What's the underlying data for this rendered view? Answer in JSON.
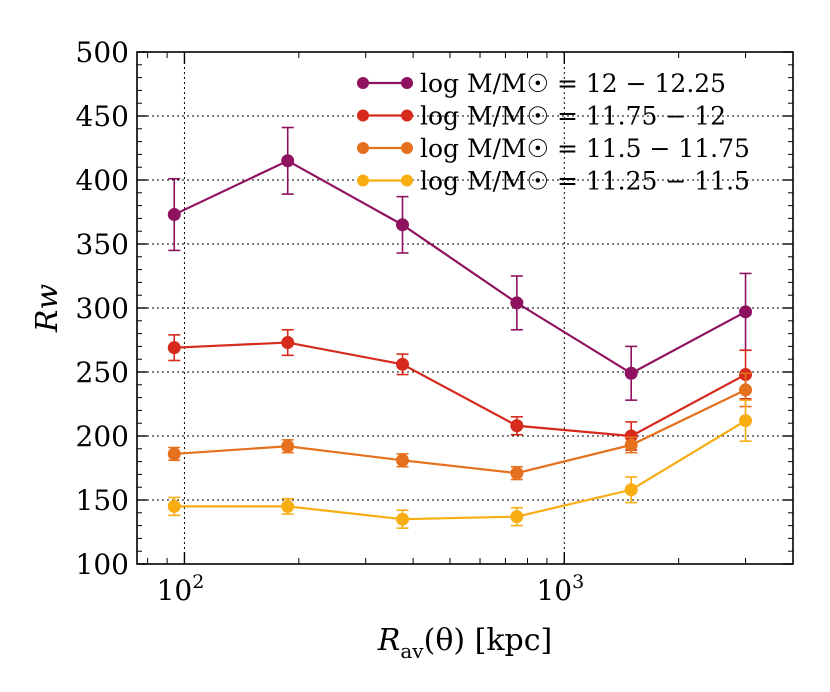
{
  "chart_data": {
    "type": "line",
    "xlabel": "R_av(θ) [kpc]",
    "ylabel": "Rw",
    "xscale": "log",
    "xlim": [
      75,
      4000
    ],
    "ylim": [
      100,
      500
    ],
    "yticks": [
      100,
      150,
      200,
      250,
      300,
      350,
      400,
      450,
      500
    ],
    "xticks": [
      {
        "value": 100,
        "label_base": "10",
        "label_exp": "2"
      },
      {
        "value": 1000,
        "label_base": "10",
        "label_exp": "3"
      }
    ],
    "grid": true,
    "legend_position": "top-right",
    "x": [
      94,
      187,
      375,
      750,
      1500,
      3000
    ],
    "series": [
      {
        "name": "log M/M☉ = 12 − 12.25",
        "color": "#8f1260",
        "values": [
          373,
          415,
          365,
          304,
          249,
          297
        ],
        "errors": [
          28,
          26,
          22,
          21,
          21,
          30
        ]
      },
      {
        "name": "log M/M☉ = 11.75 − 12",
        "color": "#d52a1c",
        "values": [
          269,
          273,
          256,
          208,
          200,
          248
        ],
        "errors": [
          10,
          10,
          8,
          7,
          11,
          19
        ]
      },
      {
        "name": "log M/M☉ = 11.5 − 11.75",
        "color": "#e5701e",
        "values": [
          186,
          192,
          181,
          171,
          193,
          236
        ],
        "errors": [
          5,
          5,
          5,
          5,
          6,
          13
        ]
      },
      {
        "name": "log M/M☉ = 11.25 − 11.5",
        "color": "#f8ad12",
        "values": [
          145,
          145,
          135,
          137,
          158,
          212
        ],
        "errors": [
          7,
          6,
          7,
          7,
          10,
          16
        ]
      }
    ]
  }
}
